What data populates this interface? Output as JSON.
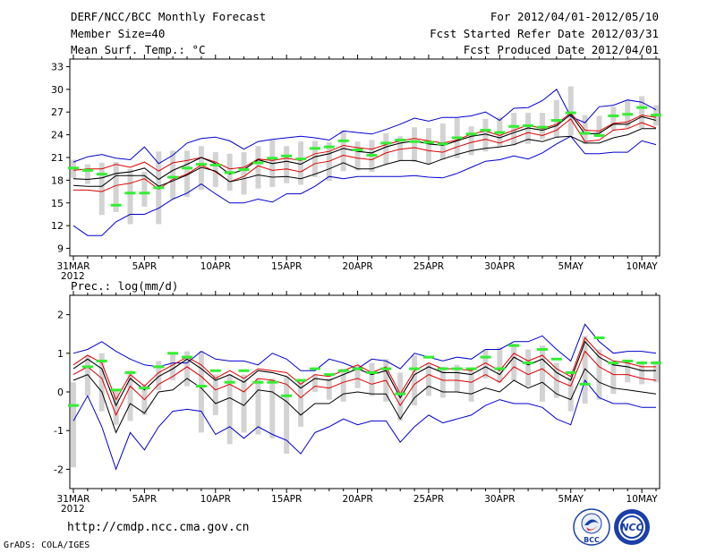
{
  "header": {
    "title": "DERF/NCC/BCC Monthly Forecast",
    "member_size": "Member Size=40",
    "variable": "Mean Surf. Temp.: °C",
    "period": "For 2012/04/01-2012/05/10",
    "fcst_started": "Fcst Started Refer Date 2012/03/31",
    "fcst_produced": "Fcst Produced Date 2012/04/01"
  },
  "precip_title": "Prec.: log(mm/d)",
  "footer": {
    "url": "http://cmdp.ncc.cma.gov.cn",
    "grads": "GrADS: COLA/IGES",
    "logo_bcc": "BCC",
    "logo_ncc": "NCC"
  },
  "colors": {
    "envelope": "#0000cc",
    "quartile": "#dd0000",
    "mean": "#000000",
    "bar": "#d3d3d3",
    "obs": "#33ee33"
  },
  "chart_data": [
    {
      "type": "line",
      "title": "Mean Surf. Temp.: °C",
      "x_ticks": [
        "31MAR",
        "5APR",
        "10APR",
        "15APR",
        "20APR",
        "25APR",
        "30APR",
        "5MAY",
        "10MAY"
      ],
      "x_tick_year": "2012",
      "ylim": [
        8,
        34
      ],
      "y_ticks": [
        9,
        12,
        15,
        18,
        21,
        24,
        27,
        30,
        33
      ],
      "series": [
        {
          "name": "max",
          "values": [
            12,
            10.7,
            10.7,
            12.5,
            13.5,
            13.5,
            14.3,
            15.5,
            16.3,
            17.5,
            16.2,
            15,
            15,
            15.5,
            15.1,
            16.2,
            16.2,
            17.2,
            18.5,
            18.2,
            18.5,
            18.5,
            18.5,
            18.5,
            18.6,
            18.4,
            18.3,
            18.9,
            19.7,
            20.5,
            20.7,
            21.2,
            20.8,
            21.6,
            22.8,
            23.8,
            21.5,
            21.5,
            21.7,
            21.7,
            23.2,
            22.7
          ]
        },
        {
          "name": "upper",
          "values": [
            20.4,
            21.1,
            21.4,
            20.9,
            20.7,
            22.4,
            20.2,
            21.3,
            22.9,
            23.5,
            23.7,
            23.2,
            22.1,
            23.1,
            23.4,
            23.6,
            23.8,
            23.6,
            23.3,
            24.5,
            24.3,
            24.1,
            24.7,
            25.4,
            26.2,
            25.8,
            26.3,
            26.3,
            26.5,
            27,
            25.9,
            27.5,
            27.6,
            28.5,
            30,
            26.4,
            25.6,
            27.7,
            27.9,
            28.6,
            28.3,
            27.3
          ]
        },
        {
          "name": "p75",
          "values": [
            19.3,
            19.5,
            19.5,
            20.1,
            19.7,
            20.4,
            19.2,
            20.3,
            20.6,
            21,
            20.4,
            19.5,
            19.7,
            20.8,
            20.6,
            20.9,
            20.6,
            21.5,
            21.8,
            22.6,
            22.3,
            22.1,
            22.7,
            23.2,
            23.5,
            23.2,
            22.9,
            23.3,
            24.1,
            24.5,
            23.9,
            24.6,
            25.3,
            24.8,
            25.4,
            26.9,
            24.6,
            24.5,
            25.5,
            25.7,
            26.6,
            26.3
          ]
        },
        {
          "name": "mean",
          "values": [
            18.2,
            18.1,
            18.3,
            18.9,
            19.1,
            19.6,
            18.1,
            19.3,
            20.1,
            21,
            20.2,
            18.8,
            19.4,
            20.7,
            20.2,
            20.5,
            20.1,
            21.1,
            21.5,
            22.2,
            21.8,
            21.6,
            22.4,
            22.9,
            23.2,
            22.8,
            22.6,
            23.2,
            23.8,
            24.1,
            23.6,
            24.3,
            24.9,
            24.6,
            25.2,
            26.7,
            24.1,
            24.2,
            25.4,
            25.4,
            26.4,
            25.9
          ]
        },
        {
          "name": "p25",
          "values": [
            16.7,
            16.7,
            16.5,
            17.3,
            17.6,
            18.2,
            16.8,
            18.1,
            18.8,
            20,
            19.1,
            17.8,
            18.5,
            19.9,
            19.3,
            19.5,
            19.1,
            20.2,
            20.5,
            21.3,
            20.9,
            20.7,
            21.6,
            22.1,
            22.3,
            21.9,
            21.7,
            22.4,
            23,
            23.4,
            22.9,
            23.6,
            24.3,
            23.9,
            24.6,
            26.1,
            23.1,
            23.3,
            24.6,
            24.8,
            25.6,
            24.9
          ]
        },
        {
          "name": "min",
          "values": [
            17.3,
            17.2,
            17.2,
            18.6,
            18.6,
            18.6,
            17.2,
            17.9,
            18.7,
            19.7,
            19.2,
            17.8,
            18.2,
            18.7,
            18.4,
            18.5,
            18.2,
            18.8,
            19.5,
            20.3,
            19.5,
            19.5,
            20.1,
            20.6,
            20.6,
            20.1,
            20.8,
            21.4,
            21.9,
            22.2,
            22.4,
            22.7,
            23.4,
            23.1,
            23.7,
            23.8,
            22.9,
            22.9,
            23.6,
            24,
            24.8,
            24.8
          ]
        },
        {
          "name": "obs",
          "values": [
            19.6,
            19.3,
            18.8,
            14.7,
            16.3,
            16.3,
            17,
            18.4,
            19.6,
            20.1,
            20,
            19,
            19.4,
            20.3,
            20.9,
            21.2,
            20.8,
            22.2,
            22.4,
            23.2,
            22,
            21.3,
            22.9,
            23.3,
            23.1,
            23,
            22.8,
            23.6,
            24.1,
            24.6,
            24.3,
            25.1,
            25.2,
            25,
            25.9,
            26.9,
            24.2,
            23.9,
            26.5,
            26.7,
            27.6,
            26.6
          ]
        }
      ],
      "bars": {
        "low": [
          18.3,
          17.5,
          13.4,
          13.8,
          12.2,
          14.5,
          12.2,
          15.5,
          15.8,
          16.7,
          17.1,
          16.6,
          16.1,
          16.9,
          17.1,
          17.6,
          17.4,
          18.4,
          17.9,
          19.2,
          19.3,
          19.1,
          20.1,
          20.6,
          20.4,
          20.1,
          20.7,
          20.9,
          21.3,
          21.8,
          22.4,
          22.6,
          22.8,
          23.4,
          23.6,
          23.9,
          22.8,
          23.7,
          24.6,
          24.9,
          24.9,
          25.2
        ],
        "high": [
          20.7,
          20.1,
          20.3,
          20.4,
          19.5,
          19.1,
          21.8,
          21.9,
          21.9,
          22.5,
          21.7,
          21.5,
          21.7,
          22.5,
          23.3,
          22.5,
          23.1,
          23.2,
          23,
          24.6,
          23.1,
          23.3,
          24.2,
          23.8,
          25,
          24.9,
          25.5,
          26.2,
          25.1,
          26.1,
          26.3,
          26.9,
          26.9,
          26.9,
          28.6,
          30.4,
          26.6,
          26.5,
          27.7,
          28.6,
          29.1,
          27.9
        ]
      }
    },
    {
      "type": "line",
      "title": "Prec.: log(mm/d)",
      "x_ticks": [
        "31MAR",
        "5APR",
        "10APR",
        "15APR",
        "20APR",
        "25APR",
        "30APR",
        "5MAY",
        "10MAY"
      ],
      "x_tick_year": "2012",
      "ylim": [
        -2.5,
        2.5
      ],
      "y_ticks": [
        -2,
        -1,
        0,
        1,
        2
      ],
      "series": [
        {
          "name": "max",
          "values": [
            -0.75,
            -0.1,
            -0.9,
            -2,
            -1.05,
            -1.5,
            -0.9,
            -0.5,
            -0.45,
            -0.5,
            -1.1,
            -0.9,
            -1.2,
            -0.9,
            -1.1,
            -1.25,
            -1.6,
            -1.05,
            -0.9,
            -0.7,
            -0.85,
            -0.75,
            -0.75,
            -1.3,
            -0.9,
            -0.6,
            -0.8,
            -0.7,
            -0.6,
            -0.35,
            -0.2,
            -0.3,
            -0.3,
            -0.4,
            -0.7,
            -0.85,
            0.3,
            -0.15,
            -0.3,
            -0.3,
            -0.4,
            -0.4
          ]
        },
        {
          "name": "upper",
          "values": [
            1,
            1.1,
            1.3,
            1.05,
            0.85,
            0.7,
            0.65,
            0.75,
            0.75,
            1.05,
            0.85,
            0.8,
            0.8,
            0.7,
            1,
            0.85,
            0.55,
            0.55,
            0.85,
            0.75,
            0.6,
            0.85,
            0.8,
            0.6,
            1,
            0.9,
            0.8,
            0.9,
            0.85,
            1.1,
            1.1,
            1.3,
            1.3,
            1.45,
            1.1,
            0.8,
            1.75,
            1.3,
            1,
            1.05,
            1.05,
            1
          ]
        },
        {
          "name": "p75",
          "values": [
            0.7,
            0.95,
            0.75,
            -0.2,
            0.45,
            0.15,
            0.5,
            0.7,
            0.9,
            0.7,
            0.35,
            0.55,
            0.35,
            0.6,
            0.55,
            0.5,
            0.2,
            0.45,
            0.4,
            0.55,
            0.7,
            0.5,
            0.65,
            -0.05,
            0.55,
            0.75,
            0.6,
            0.6,
            0.55,
            0.75,
            0.55,
            1,
            0.8,
            0.95,
            0.6,
            0.4,
            1.4,
            1,
            0.8,
            0.75,
            0.65,
            0.65
          ]
        },
        {
          "name": "mean",
          "values": [
            0.6,
            0.85,
            0.6,
            -0.35,
            0.35,
            0.05,
            0.4,
            0.6,
            0.85,
            0.6,
            0.3,
            0.45,
            0.25,
            0.55,
            0.5,
            0.4,
            0.1,
            0.35,
            0.3,
            0.45,
            0.6,
            0.45,
            0.55,
            -0.15,
            0.45,
            0.65,
            0.5,
            0.5,
            0.45,
            0.65,
            0.45,
            0.9,
            0.7,
            0.85,
            0.5,
            0.3,
            1.3,
            0.9,
            0.7,
            0.65,
            0.55,
            0.55
          ]
        },
        {
          "name": "p25",
          "values": [
            0.45,
            0.65,
            0.35,
            -0.6,
            0.15,
            -0.2,
            0.2,
            0.4,
            0.65,
            0.4,
            0.05,
            0.2,
            0,
            0.35,
            0.3,
            0.2,
            -0.15,
            0.15,
            0.1,
            0.25,
            0.35,
            0.2,
            0.3,
            -0.35,
            0.2,
            0.45,
            0.3,
            0.3,
            0.25,
            0.45,
            0.25,
            0.65,
            0.45,
            0.6,
            0.3,
            0.15,
            1.05,
            0.65,
            0.45,
            0.45,
            0.35,
            0.3
          ]
        },
        {
          "name": "min",
          "values": [
            0.3,
            0.45,
            0,
            -1.05,
            -0.3,
            -0.55,
            0,
            0.05,
            0.35,
            0.1,
            -0.3,
            -0.15,
            -0.35,
            0.05,
            0,
            -0.25,
            -0.6,
            -0.3,
            -0.3,
            -0.05,
            0,
            -0.05,
            -0.05,
            -0.7,
            -0.15,
            0.15,
            0,
            0,
            -0.05,
            0.1,
            0,
            0.3,
            0.1,
            0.25,
            -0.05,
            -0.2,
            0.6,
            0.25,
            0.1,
            0.05,
            0,
            -0.05
          ]
        },
        {
          "name": "obs",
          "values": [
            -0.35,
            0.65,
            0.8,
            0.05,
            0.5,
            0.1,
            0.65,
            1,
            0.9,
            0.15,
            0.55,
            0.25,
            0.55,
            0.25,
            0.25,
            -0.1,
            0.3,
            0.6,
            0.45,
            0.55,
            0.6,
            0.5,
            0.6,
            -0.05,
            0.6,
            0.9,
            0.6,
            0.6,
            0.6,
            0.9,
            0.6,
            1.2,
            0.75,
            1.1,
            0.85,
            0.5,
            0.2,
            1.4,
            0.75,
            0.8,
            0.75,
            0.75
          ]
        }
      ],
      "bars": {
        "low": [
          -1.95,
          -0.1,
          -0.5,
          -0.85,
          -0.75,
          -0.6,
          0.05,
          0.3,
          0.15,
          -1.05,
          -0.6,
          -1.35,
          -1.05,
          -1.1,
          -1.2,
          -1.6,
          -0.9,
          0,
          -0.2,
          -0.25,
          0.1,
          -0.1,
          -0.25,
          -0.75,
          -0.35,
          -0.1,
          -0.15,
          0,
          -0.25,
          0.35,
          0.25,
          0.3,
          0.15,
          -0.25,
          -0.15,
          -0.5,
          -0.3,
          -0.2,
          -0.05,
          0.25,
          0.2,
          0.25
        ],
        "high": [
          0.25,
          0.95,
          1,
          0.05,
          0.55,
          0.2,
          0.8,
          1,
          1.05,
          1.05,
          0.45,
          0.45,
          0.45,
          0.35,
          0.35,
          0.4,
          0.3,
          0.45,
          0.35,
          0.6,
          0.7,
          0.75,
          0.85,
          0.5,
          0.95,
          0.75,
          0.65,
          0.7,
          0.6,
          1.1,
          1.15,
          1.25,
          1.1,
          1.2,
          0.75,
          0.4,
          1.45,
          1.1,
          0.75,
          0.8,
          0.8,
          0.8
        ]
      }
    }
  ]
}
